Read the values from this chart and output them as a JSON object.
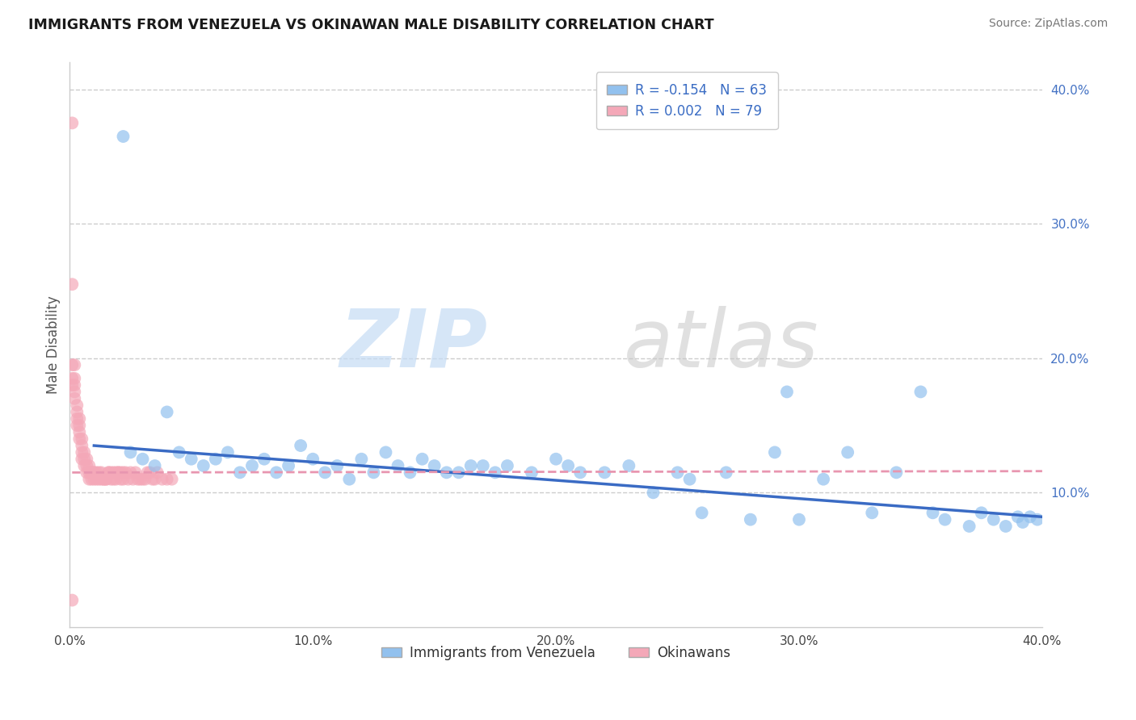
{
  "title": "IMMIGRANTS FROM VENEZUELA VS OKINAWAN MALE DISABILITY CORRELATION CHART",
  "source": "Source: ZipAtlas.com",
  "ylabel": "Male Disability",
  "xlim": [
    0.0,
    0.4
  ],
  "ylim": [
    0.0,
    0.42
  ],
  "xtick_vals": [
    0.0,
    0.1,
    0.2,
    0.3,
    0.4
  ],
  "xtick_labels": [
    "0.0%",
    "10.0%",
    "20.0%",
    "30.0%",
    "40.0%"
  ],
  "ytick_vals_right": [
    0.1,
    0.2,
    0.3,
    0.4
  ],
  "ytick_labels_right": [
    "10.0%",
    "20.0%",
    "30.0%",
    "40.0%"
  ],
  "legend_r_blue": "-0.154",
  "legend_n_blue": "63",
  "legend_r_pink": "0.002",
  "legend_n_pink": "79",
  "blue_color": "#92C1EE",
  "pink_color": "#F4A8B8",
  "trend_blue_color": "#3A6BC4",
  "trend_pink_color": "#E896B0",
  "background_color": "#FFFFFF",
  "grid_color": "#CCCCCC",
  "blue_scatter_x": [
    0.022,
    0.025,
    0.03,
    0.035,
    0.04,
    0.045,
    0.05,
    0.055,
    0.06,
    0.065,
    0.07,
    0.075,
    0.08,
    0.085,
    0.09,
    0.095,
    0.1,
    0.105,
    0.11,
    0.115,
    0.12,
    0.125,
    0.13,
    0.135,
    0.14,
    0.145,
    0.15,
    0.155,
    0.16,
    0.165,
    0.17,
    0.175,
    0.18,
    0.19,
    0.2,
    0.205,
    0.21,
    0.22,
    0.23,
    0.24,
    0.25,
    0.255,
    0.26,
    0.27,
    0.28,
    0.29,
    0.295,
    0.3,
    0.31,
    0.32,
    0.33,
    0.34,
    0.35,
    0.355,
    0.36,
    0.37,
    0.375,
    0.38,
    0.385,
    0.39,
    0.392,
    0.395,
    0.398
  ],
  "blue_scatter_y": [
    0.365,
    0.13,
    0.125,
    0.12,
    0.16,
    0.13,
    0.125,
    0.12,
    0.125,
    0.13,
    0.115,
    0.12,
    0.125,
    0.115,
    0.12,
    0.135,
    0.125,
    0.115,
    0.12,
    0.11,
    0.125,
    0.115,
    0.13,
    0.12,
    0.115,
    0.125,
    0.12,
    0.115,
    0.115,
    0.12,
    0.12,
    0.115,
    0.12,
    0.115,
    0.125,
    0.12,
    0.115,
    0.115,
    0.12,
    0.1,
    0.115,
    0.11,
    0.085,
    0.115,
    0.08,
    0.13,
    0.175,
    0.08,
    0.11,
    0.13,
    0.085,
    0.115,
    0.175,
    0.085,
    0.08,
    0.075,
    0.085,
    0.08,
    0.075,
    0.082,
    0.078,
    0.082,
    0.08
  ],
  "pink_scatter_x": [
    0.001,
    0.001,
    0.001,
    0.001,
    0.001,
    0.002,
    0.002,
    0.002,
    0.002,
    0.002,
    0.003,
    0.003,
    0.003,
    0.003,
    0.004,
    0.004,
    0.004,
    0.004,
    0.005,
    0.005,
    0.005,
    0.005,
    0.006,
    0.006,
    0.006,
    0.007,
    0.007,
    0.007,
    0.008,
    0.008,
    0.008,
    0.009,
    0.009,
    0.009,
    0.01,
    0.01,
    0.01,
    0.011,
    0.011,
    0.012,
    0.012,
    0.013,
    0.013,
    0.014,
    0.014,
    0.015,
    0.015,
    0.016,
    0.016,
    0.017,
    0.017,
    0.018,
    0.018,
    0.019,
    0.019,
    0.02,
    0.02,
    0.021,
    0.021,
    0.022,
    0.022,
    0.023,
    0.024,
    0.025,
    0.026,
    0.027,
    0.028,
    0.029,
    0.03,
    0.031,
    0.032,
    0.033,
    0.034,
    0.035,
    0.036,
    0.038,
    0.04,
    0.042,
    0.001
  ],
  "pink_scatter_y": [
    0.375,
    0.255,
    0.195,
    0.185,
    0.18,
    0.195,
    0.185,
    0.18,
    0.175,
    0.17,
    0.165,
    0.16,
    0.155,
    0.15,
    0.155,
    0.15,
    0.145,
    0.14,
    0.14,
    0.135,
    0.13,
    0.125,
    0.13,
    0.125,
    0.12,
    0.125,
    0.12,
    0.115,
    0.12,
    0.115,
    0.11,
    0.115,
    0.115,
    0.11,
    0.115,
    0.115,
    0.11,
    0.115,
    0.11,
    0.115,
    0.11,
    0.115,
    0.11,
    0.11,
    0.11,
    0.11,
    0.11,
    0.115,
    0.115,
    0.115,
    0.11,
    0.115,
    0.11,
    0.115,
    0.11,
    0.115,
    0.115,
    0.11,
    0.115,
    0.115,
    0.11,
    0.115,
    0.11,
    0.115,
    0.11,
    0.115,
    0.11,
    0.11,
    0.11,
    0.11,
    0.115,
    0.115,
    0.11,
    0.11,
    0.115,
    0.11,
    0.11,
    0.11,
    0.02
  ],
  "trend_blue_x_start": 0.01,
  "trend_blue_x_end": 0.4,
  "trend_blue_y_start": 0.135,
  "trend_blue_y_end": 0.082,
  "trend_pink_x_start": 0.001,
  "trend_pink_x_end": 0.4,
  "trend_pink_y_start": 0.115,
  "trend_pink_y_end": 0.116
}
